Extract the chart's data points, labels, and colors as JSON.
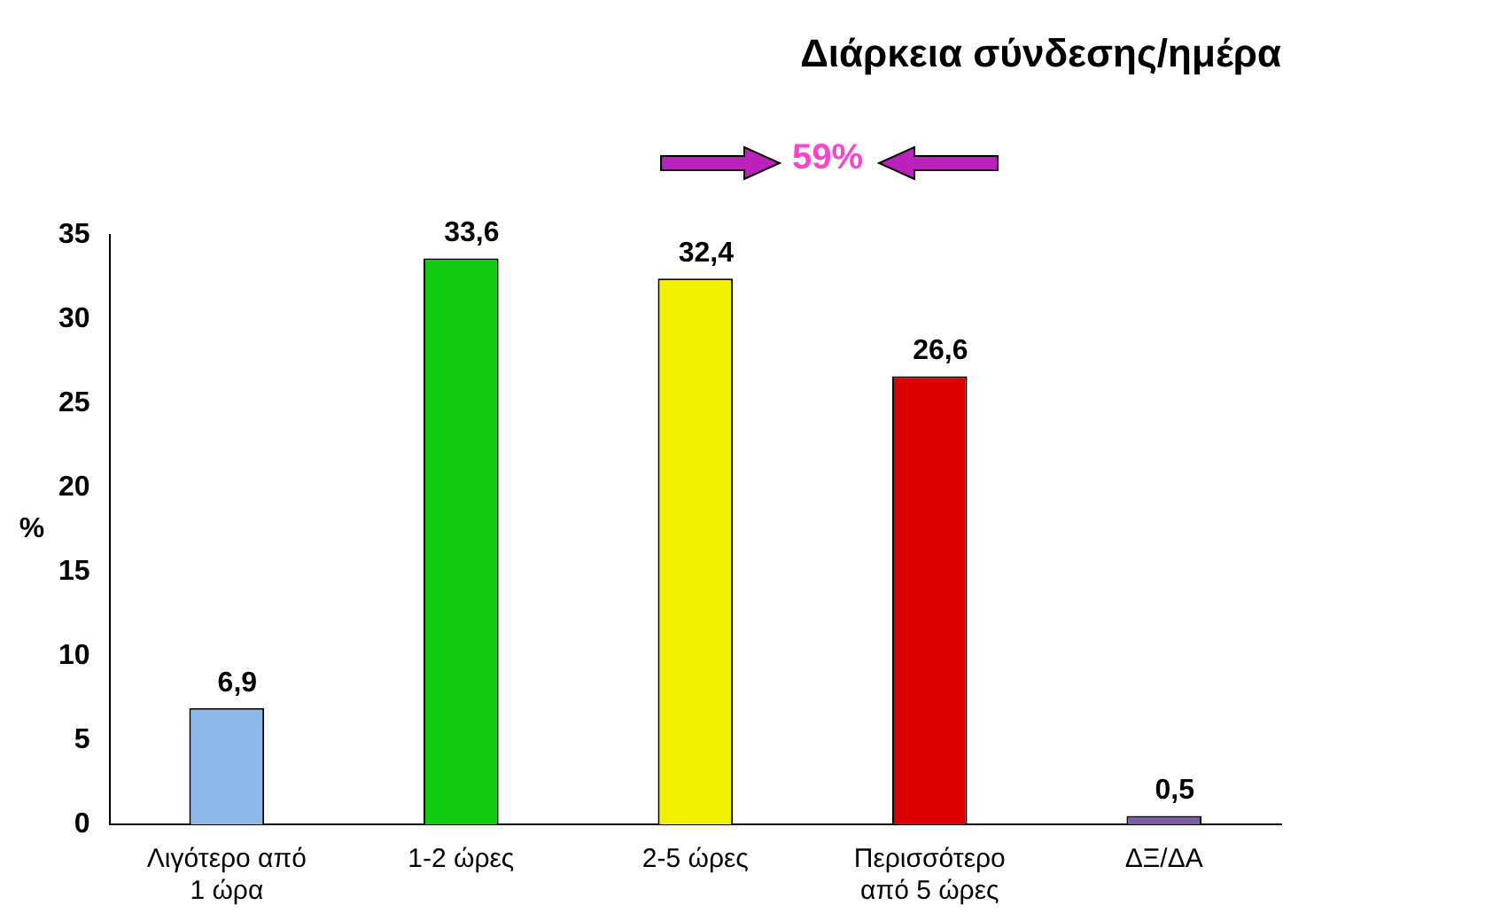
{
  "chart_data": {
    "type": "bar",
    "title": "Διάρκεια σύνδεσης/ημέρα",
    "ylabel": "%",
    "categories": [
      "Λιγότερο από 1 ώρα",
      "1-2 ώρες",
      "2-5 ώρες",
      "Περισσότερο από 5 ώρες",
      "ΔΞ/ΔΑ"
    ],
    "values": [
      6.9,
      33.6,
      32.4,
      26.6,
      0.5
    ],
    "colors": [
      "#8db8e8",
      "#11cc11",
      "#f2f200",
      "#dd0000",
      "#7a5ca8"
    ],
    "value_labels": [
      "6,9",
      "33,6",
      "32,4",
      "26,6",
      "0,5"
    ],
    "ylim": [
      0,
      35
    ],
    "yticks": [
      0,
      5,
      10,
      15,
      20,
      25,
      30,
      35
    ],
    "grid": false,
    "legend": false,
    "annotations": [
      "59%"
    ]
  }
}
